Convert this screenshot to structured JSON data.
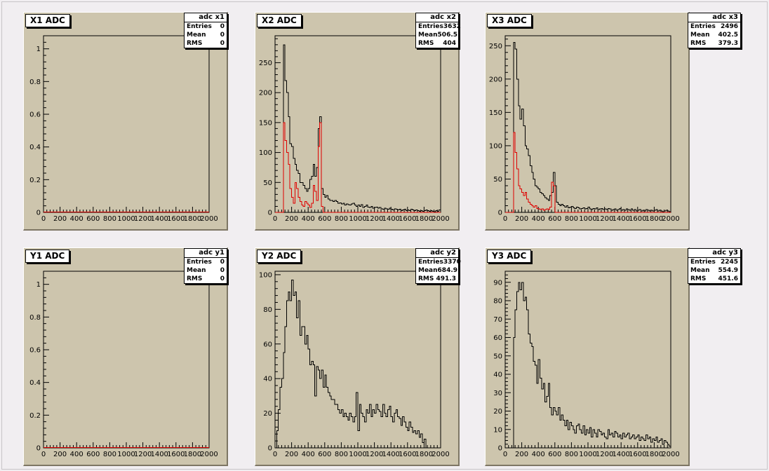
{
  "chart_data": [
    {
      "type": "histogram",
      "title": "X1 ADC",
      "stats": {
        "name": "adc x1",
        "entries": "0",
        "mean": "0",
        "rms": "0"
      },
      "xlim": [
        0,
        2000
      ],
      "ylim": [
        0,
        1.08
      ],
      "xticks": [
        0,
        200,
        400,
        600,
        800,
        1000,
        1200,
        1400,
        1600,
        1800,
        2000
      ],
      "xtick_labels": [
        "0",
        "200",
        "400",
        "600",
        "800",
        "1000",
        "1200",
        "1400",
        "1600",
        "1800",
        "2000"
      ],
      "yticks": [
        0,
        0.2,
        0.4,
        0.6,
        0.8,
        1
      ],
      "ytick_labels": [
        "0",
        "0.2",
        "0.4",
        "0.6",
        "0.8",
        "1"
      ],
      "bin_width": 20,
      "series": [
        {
          "color": "#000000",
          "values": []
        },
        {
          "color": "#e00000",
          "values": []
        }
      ]
    },
    {
      "type": "histogram",
      "title": "X2 ADC",
      "stats": {
        "name": "adc x2",
        "entries": "3632",
        "mean": "506.5",
        "rms": "404"
      },
      "xlim": [
        0,
        2000
      ],
      "ylim": [
        0,
        295
      ],
      "xticks": [
        0,
        200,
        400,
        600,
        800,
        1000,
        1200,
        1400,
        1600,
        1800,
        2000
      ],
      "xtick_labels": [
        "0",
        "200",
        "400",
        "600",
        "800",
        "1000",
        "1200",
        "1400",
        "1600",
        "1800",
        "2000"
      ],
      "yticks": [
        0,
        50,
        100,
        150,
        200,
        250
      ],
      "ytick_labels": [
        "0",
        "50",
        "100",
        "150",
        "200",
        "250"
      ],
      "bin_width": 20,
      "series": [
        {
          "color": "#000000",
          "values": [
            0,
            0,
            0,
            0,
            0,
            280,
            220,
            200,
            160,
            115,
            110,
            90,
            80,
            70,
            65,
            50,
            50,
            45,
            40,
            35,
            40,
            55,
            60,
            80,
            60,
            75,
            140,
            160,
            40,
            30,
            25,
            28,
            22,
            20,
            20,
            18,
            20,
            18,
            15,
            16,
            14,
            15,
            12,
            14,
            13,
            12,
            14,
            15,
            12,
            10,
            12,
            10,
            13,
            8,
            10,
            12,
            9,
            8,
            10,
            7,
            8,
            9,
            7,
            8,
            6,
            5,
            7,
            6,
            5,
            7,
            5,
            4,
            6,
            5,
            4,
            5,
            3,
            4,
            5,
            3,
            4,
            3,
            5,
            4,
            3,
            4,
            3,
            2,
            3,
            2,
            3,
            4,
            3,
            2,
            3,
            2,
            1,
            3,
            2,
            4
          ]
        },
        {
          "color": "#e00000",
          "values": [
            0,
            0,
            0,
            0,
            0,
            150,
            120,
            100,
            80,
            40,
            25,
            15,
            50,
            40,
            25,
            18,
            12,
            10,
            18,
            15,
            12,
            8,
            15,
            45,
            35,
            20,
            110,
            150,
            10,
            0,
            0,
            0,
            0,
            0,
            0,
            0,
            0,
            0,
            0,
            0,
            0,
            0,
            0,
            0,
            0,
            0,
            0,
            0,
            0,
            0,
            0,
            0,
            0,
            0,
            0,
            0,
            0,
            0,
            0,
            0,
            0,
            0,
            0,
            0,
            0,
            0,
            0,
            0,
            0,
            0,
            0,
            0,
            0,
            0,
            0,
            0,
            0,
            0,
            0,
            0,
            0,
            0,
            0,
            0,
            0,
            0,
            0,
            0,
            0,
            0,
            0,
            0,
            0,
            0,
            0,
            0,
            0,
            0,
            0,
            0
          ]
        }
      ]
    },
    {
      "type": "histogram",
      "title": "X3 ADC",
      "stats": {
        "name": "adc x3",
        "entries": "2496",
        "mean": "402.5",
        "rms": "379.3"
      },
      "xlim": [
        0,
        2000
      ],
      "ylim": [
        0,
        265
      ],
      "xticks": [
        0,
        200,
        400,
        600,
        800,
        1000,
        1200,
        1400,
        1600,
        1800,
        2000
      ],
      "xtick_labels": [
        "0",
        "200",
        "400",
        "600",
        "800",
        "1000",
        "1200",
        "1400",
        "1600",
        "1800",
        "2000"
      ],
      "yticks": [
        0,
        50,
        100,
        150,
        200,
        250
      ],
      "ytick_labels": [
        "0",
        "50",
        "100",
        "150",
        "200",
        "250"
      ],
      "bin_width": 20,
      "series": [
        {
          "color": "#000000",
          "values": [
            0,
            0,
            0,
            0,
            0,
            255,
            245,
            200,
            160,
            140,
            155,
            130,
            100,
            95,
            85,
            70,
            60,
            50,
            40,
            38,
            35,
            30,
            28,
            25,
            22,
            20,
            18,
            25,
            30,
            60,
            40,
            15,
            12,
            10,
            12,
            10,
            8,
            10,
            7,
            8,
            9,
            7,
            6,
            8,
            7,
            5,
            6,
            7,
            5,
            6,
            8,
            5,
            4,
            6,
            5,
            7,
            4,
            5,
            6,
            4,
            5,
            4,
            6,
            5,
            3,
            4,
            5,
            3,
            4,
            6,
            3,
            4,
            3,
            5,
            4,
            3,
            5,
            3,
            4,
            2,
            3,
            4,
            2,
            3,
            2,
            4,
            3,
            2,
            3,
            2,
            3,
            4,
            2,
            3,
            2,
            1,
            2,
            3,
            2,
            1
          ]
        },
        {
          "color": "#e00000",
          "values": [
            0,
            0,
            0,
            0,
            0,
            120,
            90,
            65,
            40,
            35,
            30,
            25,
            30,
            20,
            15,
            12,
            10,
            8,
            10,
            6,
            5,
            4,
            5,
            3,
            4,
            5,
            4,
            8,
            45,
            40,
            0,
            0,
            0,
            0,
            0,
            0,
            0,
            0,
            0,
            0,
            0,
            0,
            0,
            0,
            0,
            0,
            0,
            0,
            0,
            0,
            0,
            0,
            0,
            0,
            0,
            0,
            0,
            0,
            0,
            0,
            0,
            0,
            0,
            0,
            0,
            0,
            0,
            0,
            0,
            0,
            0,
            0,
            0,
            0,
            0,
            0,
            0,
            0,
            0,
            0,
            0,
            0,
            0,
            0,
            0,
            0,
            0,
            0,
            0,
            0,
            0,
            0,
            0,
            0,
            0,
            0,
            0,
            0,
            0,
            0
          ]
        }
      ]
    },
    {
      "type": "histogram",
      "title": "Y1 ADC",
      "stats": {
        "name": "adc y1",
        "entries": "0",
        "mean": "0",
        "rms": "0"
      },
      "xlim": [
        0,
        2000
      ],
      "ylim": [
        0,
        1.08
      ],
      "xticks": [
        0,
        200,
        400,
        600,
        800,
        1000,
        1200,
        1400,
        1600,
        1800,
        2000
      ],
      "xtick_labels": [
        "0",
        "200",
        "400",
        "600",
        "800",
        "1000",
        "1200",
        "1400",
        "1600",
        "1800",
        "2000"
      ],
      "yticks": [
        0,
        0.2,
        0.4,
        0.6,
        0.8,
        1
      ],
      "ytick_labels": [
        "0",
        "0.2",
        "0.4",
        "0.6",
        "0.8",
        "1"
      ],
      "bin_width": 20,
      "series": [
        {
          "color": "#000000",
          "values": []
        },
        {
          "color": "#e00000",
          "values": []
        }
      ]
    },
    {
      "type": "histogram",
      "title": "Y2 ADC",
      "stats": {
        "name": "adc y2",
        "entries": "3370",
        "mean": "684.9",
        "rms": "491.3"
      },
      "xlim": [
        0,
        2000
      ],
      "ylim": [
        0,
        102
      ],
      "xticks": [
        0,
        200,
        400,
        600,
        800,
        1000,
        1200,
        1400,
        1600,
        1800,
        2000
      ],
      "xtick_labels": [
        "0",
        "200",
        "400",
        "600",
        "800",
        "1000",
        "1200",
        "1400",
        "1600",
        "1800",
        "2000"
      ],
      "yticks": [
        0,
        20,
        40,
        60,
        80,
        100
      ],
      "ytick_labels": [
        "0",
        "20",
        "40",
        "60",
        "80",
        "100"
      ],
      "bin_width": 20,
      "series": [
        {
          "color": "#000000",
          "values": [
            0,
            10,
            22,
            35,
            40,
            55,
            70,
            85,
            90,
            85,
            97,
            88,
            90,
            75,
            85,
            65,
            70,
            70,
            60,
            65,
            57,
            48,
            50,
            48,
            30,
            47,
            45,
            40,
            45,
            35,
            42,
            35,
            32,
            30,
            28,
            28,
            25,
            25,
            22,
            20,
            22,
            18,
            20,
            18,
            16,
            20,
            18,
            15,
            18,
            32,
            10,
            25,
            20,
            18,
            15,
            22,
            20,
            25,
            18,
            22,
            20,
            25,
            22,
            21,
            18,
            25,
            20,
            18,
            22,
            24,
            18,
            15,
            20,
            22,
            18,
            17,
            13,
            18,
            15,
            12,
            10,
            15,
            12,
            9,
            10,
            8,
            10,
            6,
            8,
            3,
            5
          ]
        }
      ]
    },
    {
      "type": "histogram",
      "title": "Y3 ADC",
      "stats": {
        "name": "adc y3",
        "entries": "2245",
        "mean": "554.9",
        "rms": "451.6"
      },
      "xlim": [
        0,
        2000
      ],
      "ylim": [
        0,
        96
      ],
      "xticks": [
        0,
        200,
        400,
        600,
        800,
        1000,
        1200,
        1400,
        1600,
        1800,
        2000
      ],
      "xtick_labels": [
        "0",
        "200",
        "400",
        "600",
        "800",
        "1000",
        "1200",
        "1400",
        "1600",
        "1800",
        "2000"
      ],
      "yticks": [
        0,
        10,
        20,
        30,
        40,
        50,
        60,
        70,
        80,
        90
      ],
      "ytick_labels": [
        "0",
        "10",
        "20",
        "30",
        "40",
        "50",
        "60",
        "70",
        "80",
        "90"
      ],
      "bin_width": 20,
      "series": [
        {
          "color": "#000000",
          "values": [
            0,
            0,
            0,
            0,
            0,
            60,
            75,
            85,
            90,
            86,
            90,
            80,
            82,
            75,
            62,
            57,
            55,
            47,
            45,
            35,
            48,
            38,
            32,
            35,
            25,
            28,
            35,
            22,
            18,
            22,
            20,
            18,
            22,
            15,
            18,
            15,
            12,
            15,
            10,
            14,
            12,
            10,
            8,
            12,
            13,
            10,
            8,
            12,
            7,
            10,
            8,
            11,
            6,
            10,
            8,
            6,
            10,
            9,
            7,
            8,
            6,
            5,
            10,
            7,
            8,
            6,
            9,
            8,
            6,
            7,
            5,
            8,
            6,
            7,
            8,
            5,
            6,
            7,
            5,
            6,
            7,
            4,
            6,
            5,
            4,
            7,
            5,
            6,
            3,
            5,
            4,
            6,
            3,
            4,
            5,
            2,
            4,
            3,
            2,
            1
          ]
        }
      ]
    }
  ]
}
